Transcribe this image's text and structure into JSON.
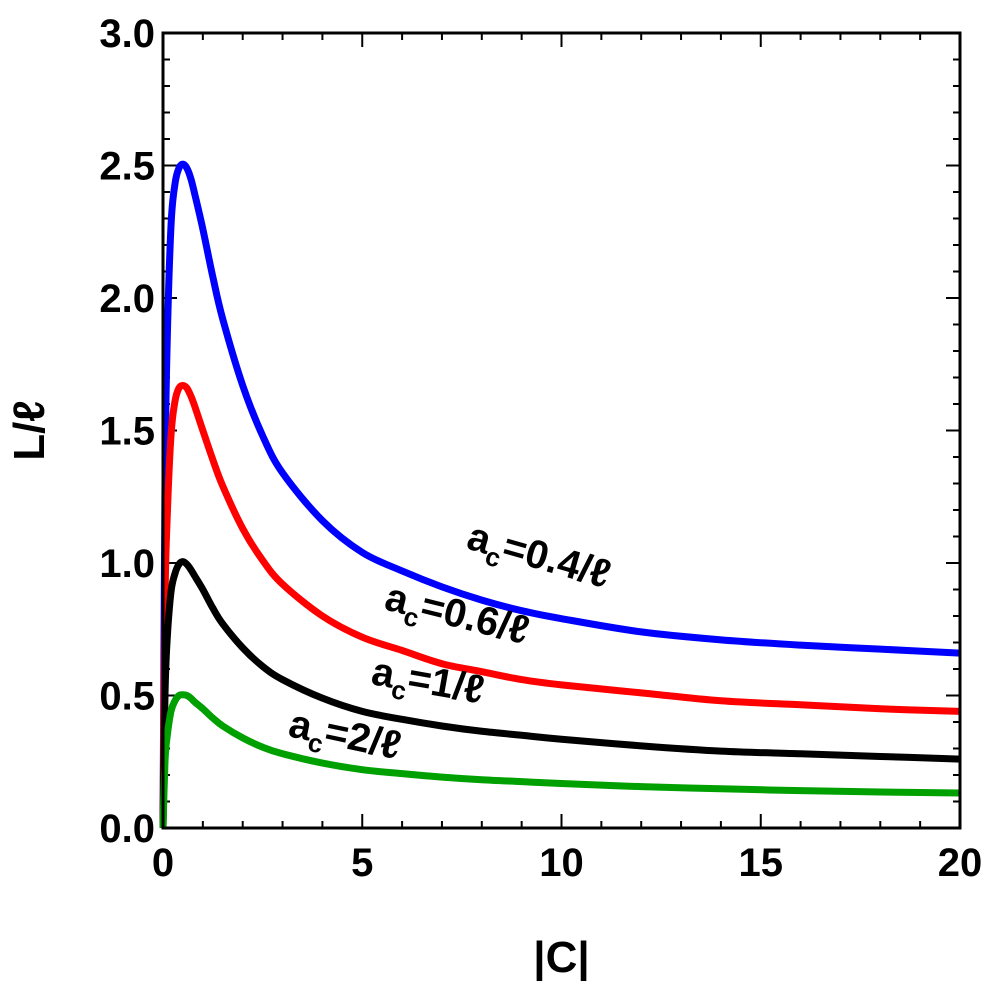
{
  "chart_data": {
    "type": "line",
    "xlabel": "|C|",
    "ylabel": "L/ℓ",
    "xlim": [
      0,
      20
    ],
    "ylim": [
      0,
      3
    ],
    "xticks": [
      0,
      5,
      10,
      15,
      20
    ],
    "xtick_labels": [
      "0",
      "5",
      "10",
      "15",
      "20"
    ],
    "yticks": [
      0,
      0.5,
      1,
      1.5,
      2,
      2.5,
      3
    ],
    "ytick_labels": [
      "0.0",
      "0.5",
      "1.0",
      "1.5",
      "2.0",
      "2.5",
      "3.0"
    ],
    "grid": false,
    "legend": "none",
    "series": [
      {
        "color": "#0000ff",
        "label_main": "a",
        "label_sub": "c",
        "label_rest": "=0.4/ℓ",
        "x": [
          0,
          0.05,
          0.1,
          0.2,
          0.3,
          0.4,
          0.5,
          0.6,
          0.7,
          0.8,
          1.0,
          1.25,
          1.5,
          2,
          2.5,
          3,
          4,
          5,
          6,
          7,
          8,
          9,
          10,
          12,
          14,
          16,
          18,
          20
        ],
        "y": [
          0,
          1.3,
          1.8,
          2.27,
          2.43,
          2.49,
          2.505,
          2.49,
          2.45,
          2.39,
          2.26,
          2.08,
          1.92,
          1.67,
          1.48,
          1.34,
          1.16,
          1.04,
          0.97,
          0.91,
          0.86,
          0.82,
          0.79,
          0.74,
          0.71,
          0.69,
          0.675,
          0.66
        ]
      },
      {
        "color": "#ff0000",
        "label_main": "a",
        "label_sub": "c",
        "label_rest": "=0.6/ℓ",
        "x": [
          0,
          0.05,
          0.1,
          0.2,
          0.3,
          0.4,
          0.5,
          0.6,
          0.7,
          0.8,
          1.0,
          1.25,
          1.5,
          2,
          2.5,
          3,
          4,
          5,
          6,
          7,
          8,
          9,
          10,
          12,
          14,
          16,
          18,
          20
        ],
        "y": [
          0,
          0.85,
          1.15,
          1.48,
          1.61,
          1.66,
          1.67,
          1.66,
          1.63,
          1.59,
          1.5,
          1.39,
          1.29,
          1.13,
          1.01,
          0.92,
          0.8,
          0.72,
          0.67,
          0.62,
          0.59,
          0.56,
          0.54,
          0.51,
          0.48,
          0.465,
          0.45,
          0.44
        ]
      },
      {
        "color": "#000000",
        "label_main": "a",
        "label_sub": "c",
        "label_rest": "=1/ℓ",
        "x": [
          0,
          0.05,
          0.1,
          0.2,
          0.3,
          0.4,
          0.5,
          0.6,
          0.7,
          0.8,
          1.0,
          1.25,
          1.5,
          2,
          2.5,
          3,
          4,
          5,
          6,
          7,
          8,
          9,
          10,
          12,
          14,
          16,
          18,
          20
        ],
        "y": [
          0,
          0.5,
          0.7,
          0.89,
          0.96,
          0.995,
          1.005,
          0.995,
          0.975,
          0.95,
          0.9,
          0.83,
          0.77,
          0.68,
          0.61,
          0.56,
          0.49,
          0.44,
          0.41,
          0.385,
          0.365,
          0.35,
          0.335,
          0.31,
          0.29,
          0.28,
          0.27,
          0.26
        ]
      },
      {
        "color": "#00a000",
        "label_main": "a",
        "label_sub": "c",
        "label_rest": "=2/ℓ",
        "x": [
          0,
          0.05,
          0.1,
          0.2,
          0.3,
          0.4,
          0.5,
          0.6,
          0.7,
          0.8,
          1.0,
          1.25,
          1.5,
          2,
          2.5,
          3,
          4,
          5,
          6,
          7,
          8,
          9,
          10,
          12,
          14,
          16,
          18,
          20
        ],
        "y": [
          0,
          0.25,
          0.34,
          0.44,
          0.48,
          0.5,
          0.503,
          0.5,
          0.49,
          0.475,
          0.45,
          0.415,
          0.385,
          0.34,
          0.305,
          0.28,
          0.245,
          0.22,
          0.205,
          0.192,
          0.182,
          0.175,
          0.168,
          0.156,
          0.148,
          0.141,
          0.136,
          0.132
        ]
      }
    ]
  }
}
